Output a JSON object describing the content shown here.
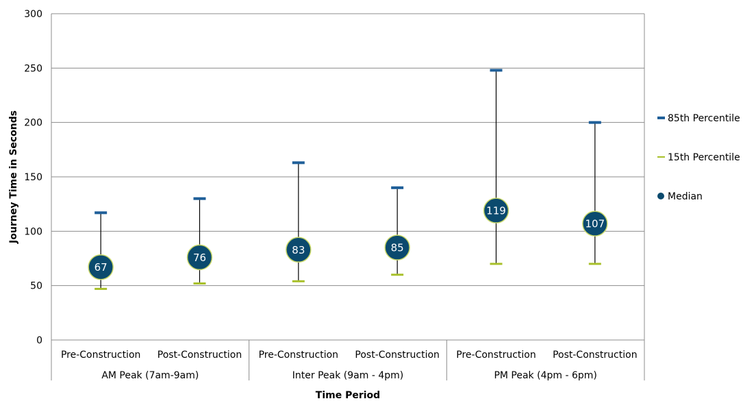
{
  "chart_data": {
    "type": "scatter",
    "xlabel": "Time Period",
    "ylabel": "Journey Time in Seconds",
    "ylim": [
      0,
      300
    ],
    "yticks": [
      0,
      50,
      100,
      150,
      200,
      250,
      300
    ],
    "grid": true,
    "legend_position": "right",
    "categories": [
      "Pre-Construction",
      "Post-Construction",
      "Pre-Construction",
      "Post-Construction",
      "Pre-Construction",
      "Post-Construction"
    ],
    "groups": [
      {
        "label": "AM Peak (7am-9am)",
        "span": 2
      },
      {
        "label": "Inter Peak (9am - 4pm)",
        "span": 2
      },
      {
        "label": "PM Peak (4pm - 6pm)",
        "span": 2
      }
    ],
    "series": [
      {
        "name": "85th Percentile",
        "color": "#1f5f99",
        "marker": "dash",
        "values": [
          117,
          130,
          163,
          140,
          248,
          200
        ]
      },
      {
        "name": "15th Percentile",
        "color": "#a8c02a",
        "marker": "dash",
        "values": [
          47,
          52,
          54,
          60,
          70,
          70
        ]
      },
      {
        "name": "Median",
        "color": "#0b4a6e",
        "marker": "circle",
        "values": [
          67,
          76,
          83,
          85,
          119,
          107
        ]
      }
    ],
    "median_labels": [
      "67",
      "76",
      "83",
      "85",
      "119",
      "107"
    ]
  }
}
